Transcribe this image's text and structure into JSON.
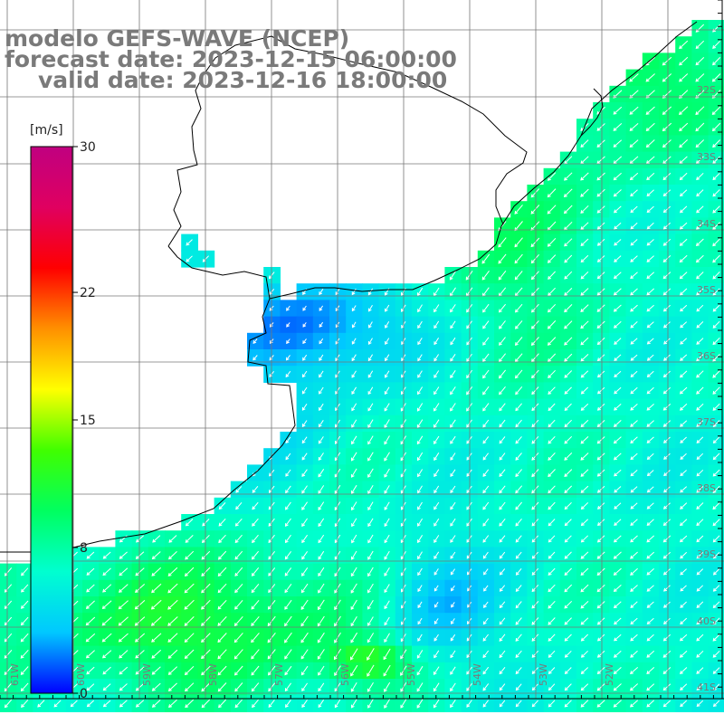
{
  "header": {
    "title": "modelo GEFS-WAVE (NCEP)",
    "forecast": "forecast date: 2023-12-15 06:00:00",
    "valid": "valid date: 2023-12-16 18:00:00"
  },
  "colorbar": {
    "unit": "[m/s]",
    "min": 0,
    "max": 30,
    "ticks": [
      "30",
      "22",
      "15",
      "8",
      "0"
    ],
    "tick_values": [
      30,
      22,
      15,
      8,
      0
    ],
    "colors": [
      "#0000ff",
      "#00c8ff",
      "#00ffd0",
      "#00ff60",
      "#40ff00",
      "#ffff00",
      "#ff9000",
      "#ff0000",
      "#e00060",
      "#c00080"
    ]
  },
  "map": {
    "lat_labels": [
      "32S",
      "33S",
      "34S",
      "35S",
      "36S",
      "37S",
      "38S",
      "39S",
      "40S",
      "41S"
    ],
    "lon_labels": [
      "61W",
      "60W",
      "59W",
      "58W",
      "57W",
      "56W",
      "55W",
      "54W",
      "53W",
      "52W"
    ],
    "colors": {
      "land": "#ffffff",
      "grid": "#777777",
      "coast": "#000000",
      "arrow": "#ffffff"
    }
  }
}
